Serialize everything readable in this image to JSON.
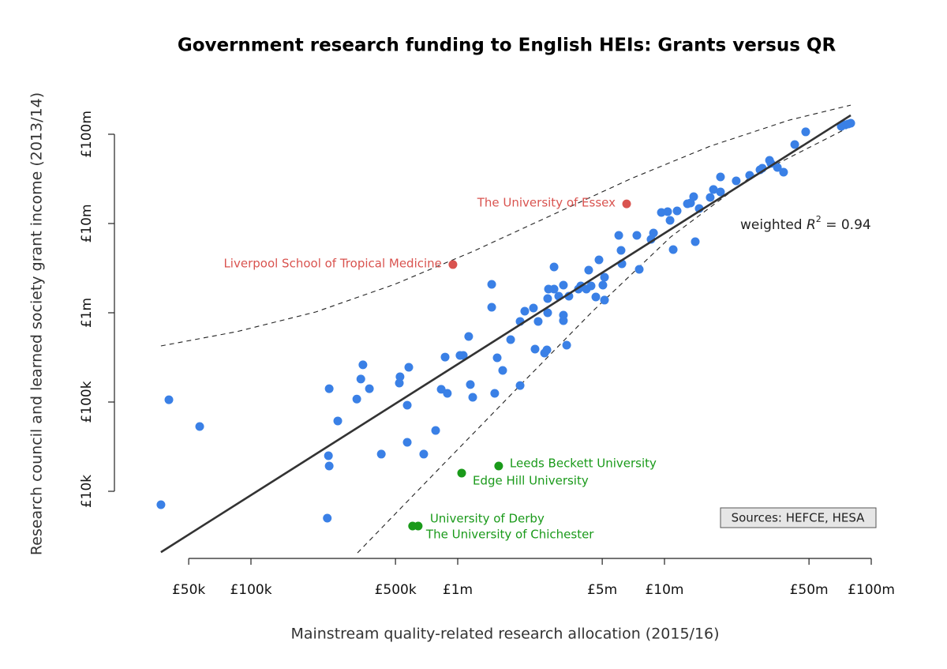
{
  "chart_data": {
    "type": "scatter",
    "title": "Government research funding to English HEIs: Grants versus QR",
    "x_label": "Mainstream quality-related research allocation (2015/16)",
    "y_label": "Research council and learned society grant income (2013/14)",
    "log_x": true,
    "log_y": true,
    "xlim": [
      30000,
      100000000
    ],
    "ylim": [
      2000,
      250000000
    ],
    "xticks": [
      {
        "value": 50000,
        "label": "£50k"
      },
      {
        "value": 100000,
        "label": "£100k"
      },
      {
        "value": 500000,
        "label": "£500k"
      },
      {
        "value": 1000000,
        "label": "£1m"
      },
      {
        "value": 5000000,
        "label": "£5m"
      },
      {
        "value": 10000000,
        "label": "£10m"
      },
      {
        "value": 50000000,
        "label": "£50m"
      },
      {
        "value": 100000000,
        "label": "£100m"
      }
    ],
    "yticks": [
      {
        "value": 10000,
        "label": "£10k"
      },
      {
        "value": 100000,
        "label": "£100k"
      },
      {
        "value": 1000000,
        "label": "£1m"
      },
      {
        "value": 10000000,
        "label": "£10m"
      },
      {
        "value": 100000000,
        "label": "£100m"
      }
    ],
    "series": [
      {
        "color": "#3a80e6",
        "x": [
          36700,
          40100,
          56500,
          234000,
          239000,
          237000,
          239000,
          263000,
          325000,
          340000,
          348000,
          374000,
          427000,
          522000,
          526000,
          570000,
          580000,
          570000,
          685000,
          782000,
          832000,
          869000,
          891000,
          1026000,
          1064000,
          1130000,
          1151000,
          1182000,
          1460000,
          1460000,
          1510000,
          1552000,
          1650000,
          1803000,
          2003000,
          2003000,
          2110000,
          2324000,
          2366000,
          2450000,
          2630000,
          2700000,
          2723000,
          2748000,
          2723000,
          2924000,
          2924000,
          3080000,
          3245000,
          3245000,
          3245000,
          3365000,
          3450000,
          3837000,
          3937000,
          4190000,
          4300000,
          4416000,
          4656000,
          4822000,
          5036000,
          5128000,
          5128000,
          6010000,
          6166000,
          6223000,
          7350000,
          7550000,
          8610000,
          8850000,
          9660000,
          10360000,
          10640000,
          11020000,
          11510000,
          12910000,
          13370000,
          13840000,
          14090000,
          14720000,
          16640000,
          17250000,
          18660000,
          18660000,
          22230000,
          25820000,
          28970000,
          29720000,
          32210000,
          32730000,
          35160000,
          37670000,
          42660000,
          48190000,
          71610000,
          74820000,
          77450000,
          79600000
        ],
        "values": [
          7080,
          106000,
          53200,
          5000,
          141000,
          25000,
          19200,
          61400,
          108000,
          181000,
          261000,
          141000,
          26100,
          163000,
          192000,
          92200,
          245000,
          35400,
          26100,
          48000,
          139000,
          319000,
          125000,
          333000,
          333000,
          543000,
          157000,
          113000,
          2080000,
          1153000,
          125000,
          313000,
          226000,
          500000,
          153000,
          800000,
          1042000,
          1130000,
          392000,
          800000,
          354000,
          384000,
          1443000,
          1842000,
          1000000,
          3260000,
          1842000,
          1535000,
          2040000,
          940000,
          816000,
          434000,
          1535000,
          1842000,
          2000000,
          1842000,
          3005000,
          2000000,
          1503000,
          3917000,
          2040000,
          2500000,
          1387000,
          7360000,
          5000000,
          3540000,
          7360000,
          3069000,
          6650000,
          7830000,
          13300000,
          13580000,
          10840000,
          5100000,
          13860000,
          16640000,
          16980000,
          20000000,
          6250000,
          14720000,
          19590000,
          24040000,
          22590000,
          33270000,
          30060000,
          34670000,
          39990000,
          41590000,
          51050000,
          47100000,
          42460000,
          37580000,
          76740000,
          106400000,
          122500000,
          127700000,
          130300000,
          133000000
        ]
      }
    ],
    "labelled_points": [
      {
        "label": "The University of Essex",
        "x": 6560000,
        "y": 16600000,
        "color": "#d9534f"
      },
      {
        "label": "Liverpool School of Tropical Medicine",
        "x": 948000,
        "y": 3470000,
        "color": "#d9534f"
      },
      {
        "label": "Leeds Beckett University",
        "x": 1578000,
        "y": 19200,
        "color": "#1a9a1a"
      },
      {
        "label": "Edge Hill University",
        "x": 1045000,
        "y": 16000,
        "color": "#1a9a1a"
      },
      {
        "label": "University of Derby",
        "x": 605000,
        "y": 4080,
        "color": "#1a9a1a"
      },
      {
        "label": "The University of Chichester",
        "x": 644000,
        "y": 4080,
        "color": "#1a9a1a"
      }
    ],
    "fit_line": {
      "x": [
        36700,
        79600000
      ],
      "y": [
        2080,
        163000000
      ]
    },
    "bounds": [
      {
        "x": [
          36700,
          85400,
          205600,
          495000,
          1192000,
          2871000,
          6913000,
          16650000,
          40100000,
          79600000
        ],
        "y": [
          424600,
          614000,
          1020000,
          2083000,
          4900000,
          12500000,
          31900000,
          73600000,
          144000000,
          212000000
        ]
      },
      {
        "x": [
          327600,
          768000,
          1851000,
          4456000,
          10730000,
          25840000,
          79600000
        ],
        "y": [
          2040,
          15700,
          127600,
          1020000,
          7080000,
          32600000,
          122500000
        ]
      }
    ],
    "r2_label": [
      "weighted ",
      "R",
      "2",
      " = 0.94"
    ],
    "source": "Sources: HEFCE, HESA"
  }
}
